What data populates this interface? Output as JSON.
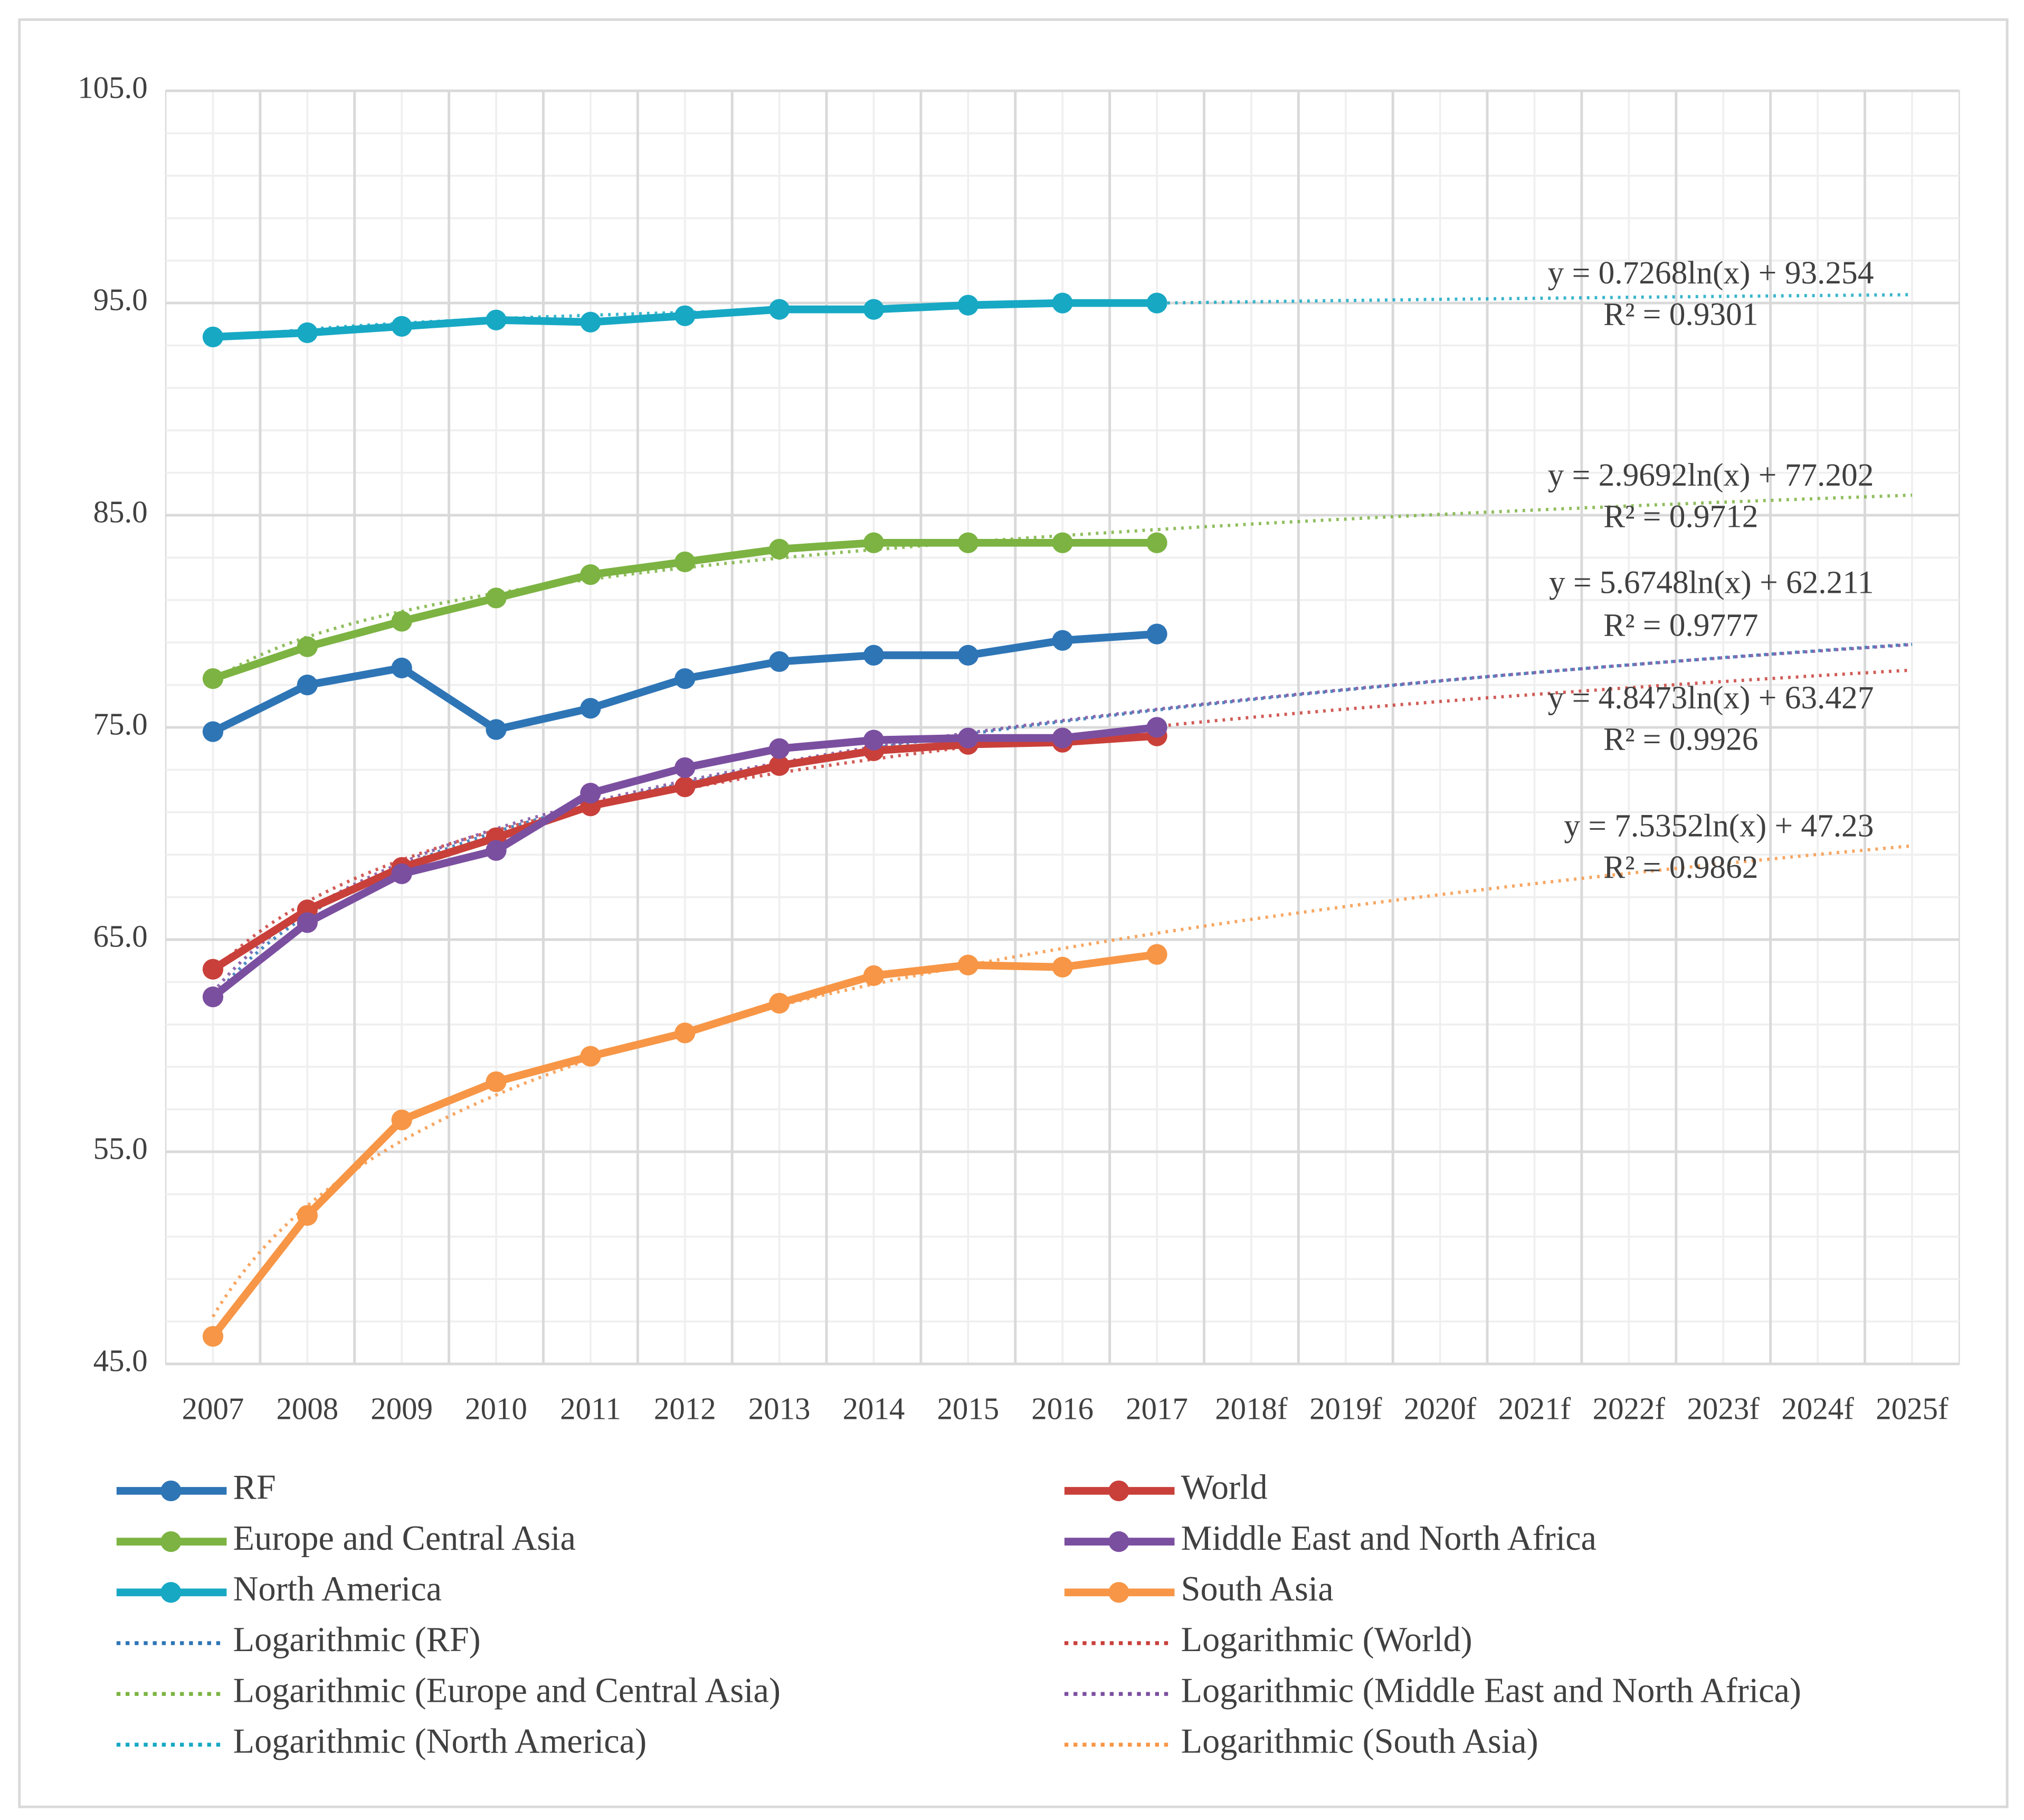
{
  "chart_data": {
    "type": "line",
    "categories": [
      "2007",
      "2008",
      "2009",
      "2010",
      "2011",
      "2012",
      "2013",
      "2014",
      "2015",
      "2016",
      "2017",
      "2018f",
      "2019f",
      "2020f",
      "2021f",
      "2022f",
      "2023f",
      "2024f",
      "2025f"
    ],
    "ylim": [
      45,
      105
    ],
    "yticks": [
      {
        "value": 45,
        "label": "45.0"
      },
      {
        "value": 55,
        "label": "55.0"
      },
      {
        "value": 65,
        "label": "65.0"
      },
      {
        "value": 75,
        "label": "75.0"
      },
      {
        "value": 85,
        "label": "85.0"
      },
      {
        "value": 95,
        "label": "95.0"
      },
      {
        "value": 105,
        "label": "105.0"
      }
    ],
    "grid": true,
    "series": [
      {
        "name": "RF",
        "color": "#2e75b6",
        "values": [
          74.8,
          77.0,
          77.8,
          74.9,
          75.9,
          77.3,
          78.1,
          78.4,
          78.4,
          79.1,
          79.4,
          null,
          null,
          null,
          null,
          null,
          null,
          null,
          null
        ],
        "trend": {
          "name": "Logarithmic (RF)",
          "equation": "y = 5.6748ln(x)  + 62.211",
          "r_squared": "R² = 0.9777",
          "a": 5.6748,
          "b": 62.211
        }
      },
      {
        "name": "World",
        "color": "#c9403a",
        "values": [
          63.6,
          66.4,
          68.4,
          69.8,
          71.3,
          72.2,
          73.2,
          73.9,
          74.2,
          74.3,
          74.6,
          null,
          null,
          null,
          null,
          null,
          null,
          null,
          null
        ],
        "trend": {
          "name": "Logarithmic (World)",
          "equation": "y = 4.8473ln(x)  + 63.427",
          "r_squared": "R² = 0.9926",
          "a": 4.8473,
          "b": 63.427
        }
      },
      {
        "name": "Europe and Central Asia",
        "color": "#7cb342",
        "values": [
          77.3,
          78.8,
          80.0,
          81.1,
          82.2,
          82.8,
          83.4,
          83.7,
          83.7,
          83.7,
          83.7,
          null,
          null,
          null,
          null,
          null,
          null,
          null,
          null
        ],
        "trend": {
          "name": "Logarithmic (Europe and Central Asia)",
          "equation": "y = 2.9692ln(x)  + 77.202",
          "r_squared": "R² = 0.9712",
          "a": 2.9692,
          "b": 77.202
        }
      },
      {
        "name": "Middle East and North Africa",
        "color": "#7b4fa0",
        "values": [
          62.3,
          65.8,
          68.1,
          69.2,
          71.9,
          73.1,
          74.0,
          74.4,
          74.5,
          74.5,
          75.0,
          null,
          null,
          null,
          null,
          null,
          null,
          null,
          null
        ],
        "trend": {
          "name": "Logarithmic (Middle East and North Africa)",
          "a": 5.57,
          "b": 62.5
        }
      },
      {
        "name": "North America",
        "color": "#17a8c4",
        "values": [
          93.4,
          93.6,
          93.9,
          94.2,
          94.1,
          94.4,
          94.7,
          94.7,
          94.9,
          95.0,
          95.0,
          null,
          null,
          null,
          null,
          null,
          null,
          null,
          null
        ],
        "trend": {
          "name": "Logarithmic (North America)",
          "equation": "y = 0.7268ln(x)  + 93.254",
          "r_squared": "R² = 0.9301",
          "a": 0.7268,
          "b": 93.254
        }
      },
      {
        "name": "South Asia",
        "color": "#f79646",
        "values": [
          46.3,
          52.0,
          56.5,
          58.3,
          59.5,
          60.6,
          62.0,
          63.3,
          63.8,
          63.7,
          64.3,
          null,
          null,
          null,
          null,
          null,
          null,
          null,
          null
        ],
        "trend": {
          "name": "Logarithmic (South Asia)",
          "equation": "y = 7.5352ln(x)  + 47.23",
          "r_squared": "R² = 0.9862",
          "a": 7.5352,
          "b": 47.23
        }
      }
    ]
  }
}
